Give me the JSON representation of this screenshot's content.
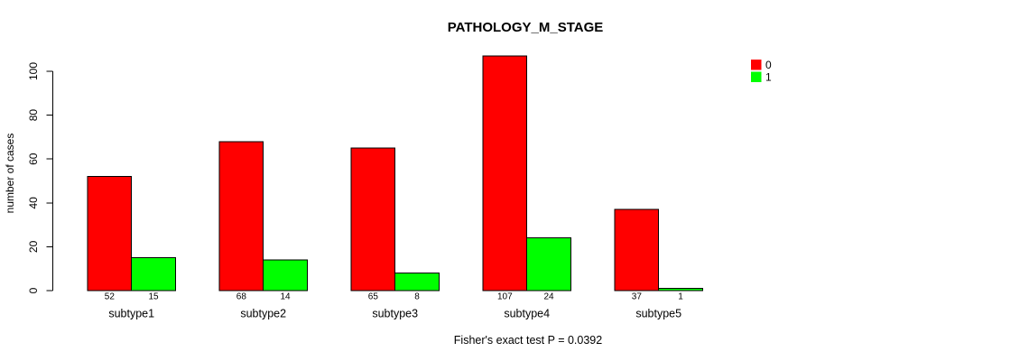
{
  "chart_data": {
    "type": "bar",
    "title": "PATHOLOGY_M_STAGE",
    "ylabel": "number of cases",
    "xlabel": "",
    "footnote": "Fisher's exact test P = 0.0392",
    "categories": [
      "subtype1",
      "subtype2",
      "subtype3",
      "subtype4",
      "subtype5"
    ],
    "series": [
      {
        "name": "0",
        "color": "#FF0000",
        "values": [
          52,
          68,
          65,
          107,
          37
        ]
      },
      {
        "name": "1",
        "color": "#00FF00",
        "values": [
          15,
          14,
          8,
          24,
          1
        ]
      }
    ],
    "bar_value_labels": [
      [
        52,
        15
      ],
      [
        68,
        14
      ],
      [
        65,
        8
      ],
      [
        107,
        24
      ],
      [
        37,
        1
      ]
    ],
    "yticks": [
      0,
      20,
      40,
      60,
      80,
      100
    ],
    "ylim": [
      0,
      100
    ],
    "grid": false,
    "legend_position": "top-right",
    "plot_bg": "#ffffff"
  }
}
